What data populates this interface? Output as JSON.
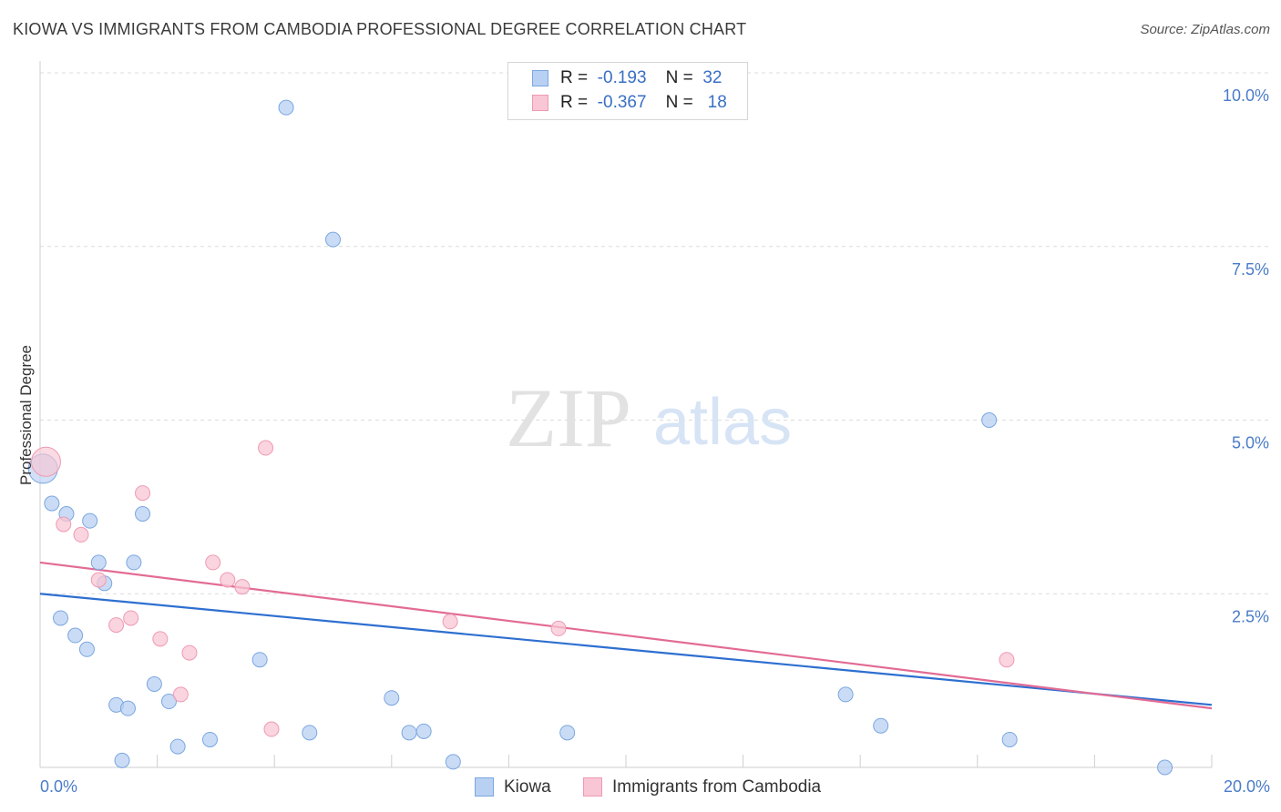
{
  "title": "KIOWA VS IMMIGRANTS FROM CAMBODIA PROFESSIONAL DEGREE CORRELATION CHART",
  "source": "Source: ZipAtlas.com",
  "watermark": {
    "zip": "ZIP",
    "atlas": "atlas"
  },
  "legend": {
    "rows": [
      {
        "r_label": "R =",
        "r_value": "-0.193",
        "n_label": "N =",
        "n_value": "32"
      },
      {
        "r_label": "R =",
        "r_value": "-0.367",
        "n_label": "N =",
        "n_value": "18"
      }
    ]
  },
  "colors": {
    "kiowa_fill": "#b8d0f2",
    "kiowa_stroke": "#7aa6e0",
    "kiowa_line": "#2e6fd0",
    "cambodia_fill": "#f8c6d4",
    "cambodia_stroke": "#ee9ab2",
    "cambodia_line": "#e26b94",
    "tick_text": "#4a7cc9",
    "grid": "#dcdcdc"
  },
  "chart_data": {
    "type": "scatter",
    "title": "KIOWA VS IMMIGRANTS FROM CAMBODIA PROFESSIONAL DEGREE CORRELATION CHART",
    "xlabel": "",
    "ylabel": "Professional Degree",
    "xlim": [
      0,
      20
    ],
    "ylim": [
      0,
      10.5
    ],
    "x_tick_labels": [
      "0.0%",
      "20.0%"
    ],
    "y_ticks": [
      {
        "value": 2.5,
        "label": "2.5%"
      },
      {
        "value": 5.0,
        "label": "5.0%"
      },
      {
        "value": 7.5,
        "label": "7.5%"
      },
      {
        "value": 10.0,
        "label": "10.0%"
      }
    ],
    "series": [
      {
        "name": "Kiowa",
        "color": "#b8d0f2",
        "trend": {
          "x0": 0,
          "y0": 2.5,
          "x1": 20,
          "y1": 0.9
        },
        "points": [
          {
            "x": 0.05,
            "y": 4.3,
            "big": true
          },
          {
            "x": 4.2,
            "y": 9.5
          },
          {
            "x": 5.0,
            "y": 7.6
          },
          {
            "x": 16.2,
            "y": 5.0
          },
          {
            "x": 0.2,
            "y": 3.8
          },
          {
            "x": 0.45,
            "y": 3.65
          },
          {
            "x": 0.85,
            "y": 3.55
          },
          {
            "x": 1.75,
            "y": 3.65
          },
          {
            "x": 1.0,
            "y": 2.95
          },
          {
            "x": 1.6,
            "y": 2.95
          },
          {
            "x": 1.1,
            "y": 2.65
          },
          {
            "x": 0.35,
            "y": 2.15
          },
          {
            "x": 0.6,
            "y": 1.9
          },
          {
            "x": 0.8,
            "y": 1.7
          },
          {
            "x": 3.75,
            "y": 1.55
          },
          {
            "x": 1.95,
            "y": 1.2
          },
          {
            "x": 2.2,
            "y": 0.95
          },
          {
            "x": 1.3,
            "y": 0.9
          },
          {
            "x": 1.5,
            "y": 0.85
          },
          {
            "x": 6.0,
            "y": 1.0
          },
          {
            "x": 13.75,
            "y": 1.05
          },
          {
            "x": 14.35,
            "y": 0.6
          },
          {
            "x": 4.6,
            "y": 0.5
          },
          {
            "x": 6.3,
            "y": 0.5
          },
          {
            "x": 6.55,
            "y": 0.52
          },
          {
            "x": 9.0,
            "y": 0.5
          },
          {
            "x": 2.9,
            "y": 0.4
          },
          {
            "x": 2.35,
            "y": 0.3
          },
          {
            "x": 16.55,
            "y": 0.4
          },
          {
            "x": 1.4,
            "y": 0.1
          },
          {
            "x": 7.05,
            "y": 0.08
          },
          {
            "x": 19.2,
            "y": 0.0
          }
        ]
      },
      {
        "name": "Immigrants from Cambodia",
        "color": "#f8c6d4",
        "trend": {
          "x0": 0,
          "y0": 2.95,
          "x1": 20,
          "y1": 0.85
        },
        "points": [
          {
            "x": 0.1,
            "y": 4.4,
            "big": true
          },
          {
            "x": 3.85,
            "y": 4.6
          },
          {
            "x": 1.75,
            "y": 3.95
          },
          {
            "x": 0.4,
            "y": 3.5
          },
          {
            "x": 0.7,
            "y": 3.35
          },
          {
            "x": 2.95,
            "y": 2.95
          },
          {
            "x": 1.0,
            "y": 2.7
          },
          {
            "x": 3.2,
            "y": 2.7
          },
          {
            "x": 3.45,
            "y": 2.6
          },
          {
            "x": 1.55,
            "y": 2.15
          },
          {
            "x": 1.3,
            "y": 2.05
          },
          {
            "x": 7.0,
            "y": 2.1
          },
          {
            "x": 8.85,
            "y": 2.0
          },
          {
            "x": 2.05,
            "y": 1.85
          },
          {
            "x": 2.55,
            "y": 1.65
          },
          {
            "x": 16.5,
            "y": 1.55
          },
          {
            "x": 2.4,
            "y": 1.05
          },
          {
            "x": 3.95,
            "y": 0.55
          }
        ]
      }
    ],
    "legend_position": "top-center"
  }
}
